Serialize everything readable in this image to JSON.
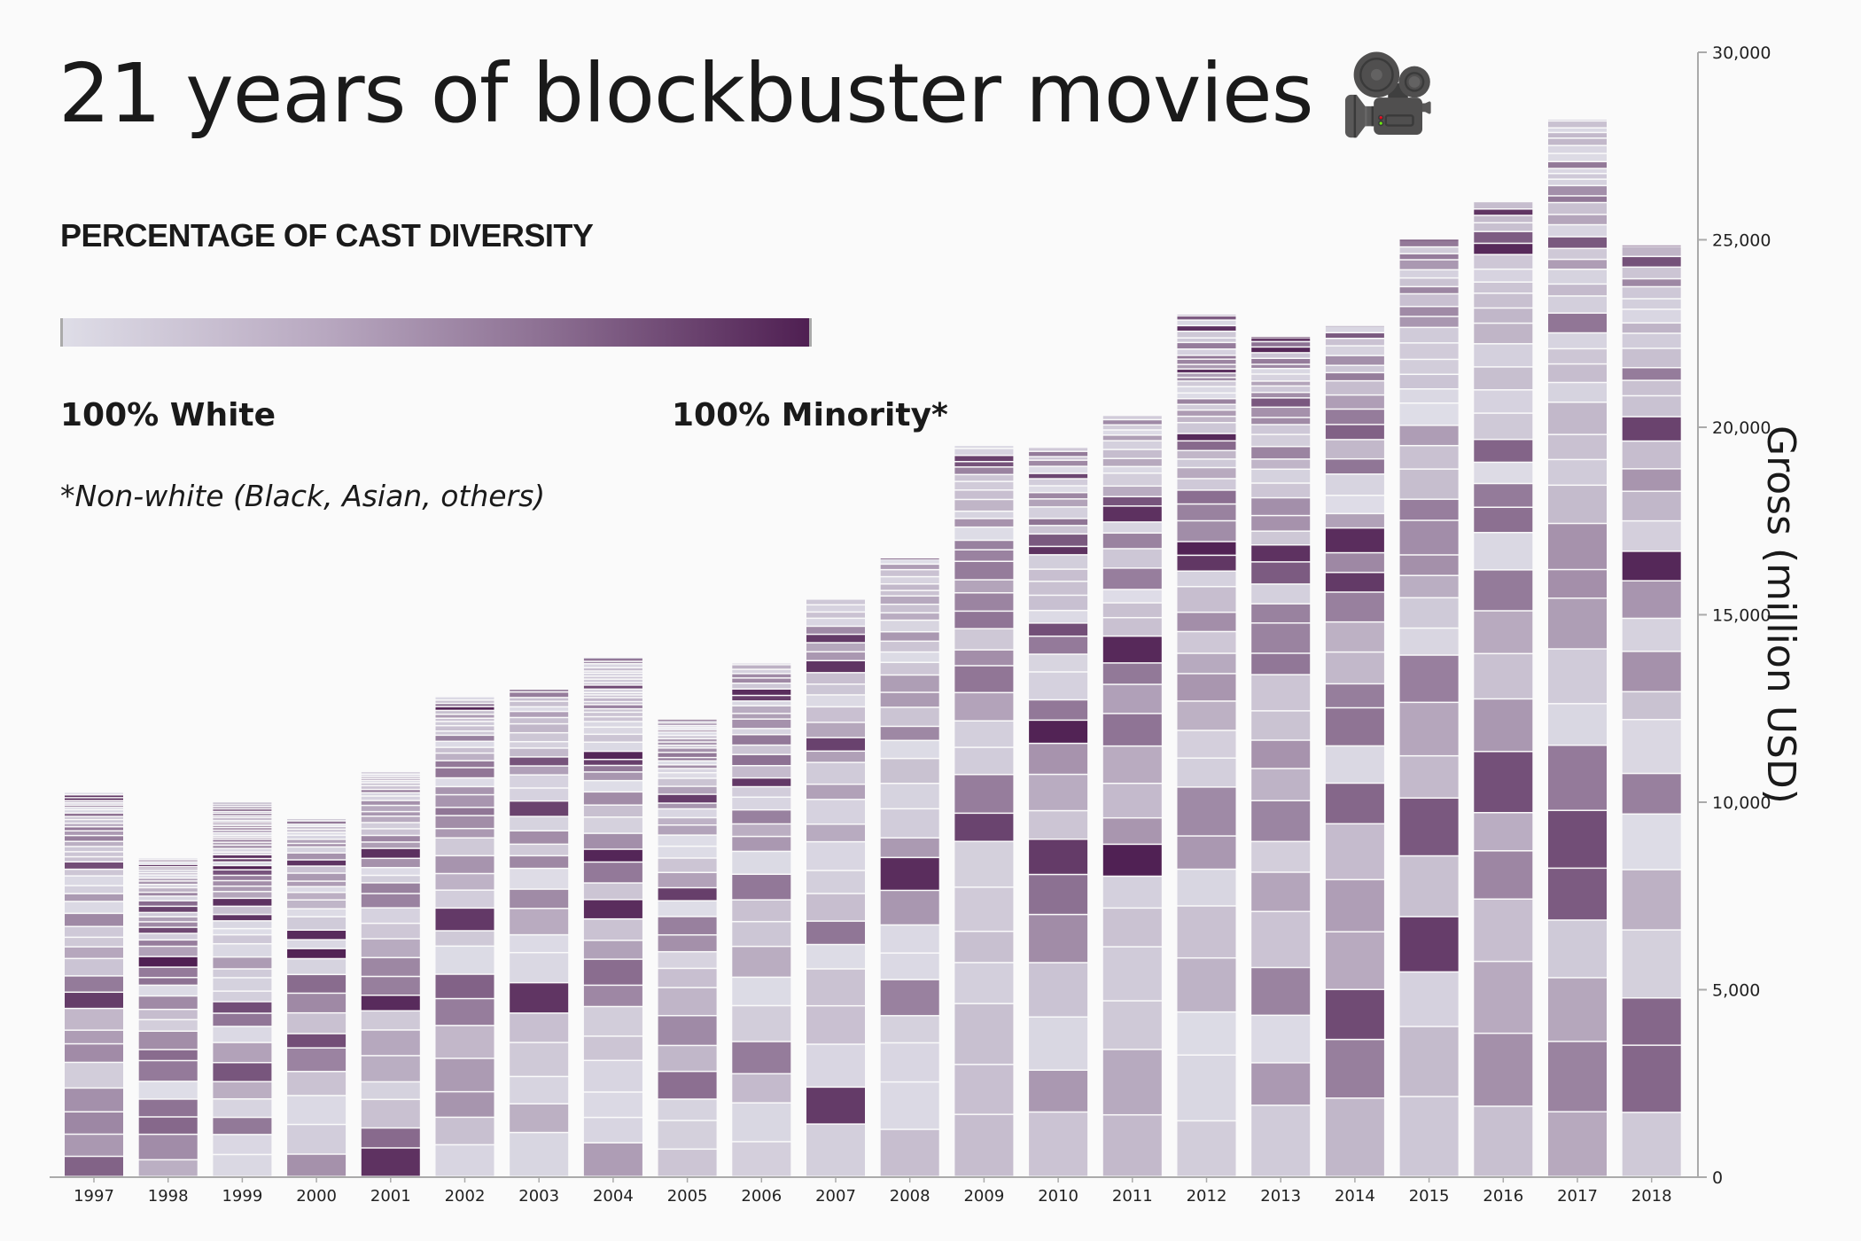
{
  "chart_data": {
    "type": "bar",
    "stacked": true,
    "title": "21 years of blockbuster movies",
    "title_icon": "movie-camera",
    "legend": {
      "title": "PERCENTAGE OF CAST DIVERSITY",
      "low_label": "100% White",
      "high_label": "100% Minority*",
      "footnote": "*Non-white (Black, Asian, others)",
      "low_color": "#dedde7",
      "high_color": "#4f1f52"
    },
    "xlabel": "",
    "ylabel": "Gross (million USD)",
    "ylim": [
      0,
      30000
    ],
    "yticks": [
      0,
      5000,
      10000,
      15000,
      20000,
      25000,
      30000
    ],
    "ytick_labels": [
      "0",
      "5,000",
      "10,000",
      "15,000",
      "20,000",
      "25,000",
      "30,000"
    ],
    "categories": [
      "1997",
      "1998",
      "1999",
      "2000",
      "2001",
      "2002",
      "2003",
      "2004",
      "2005",
      "2006",
      "2007",
      "2008",
      "2009",
      "2010",
      "2011",
      "2012",
      "2013",
      "2014",
      "2015",
      "2016",
      "2017",
      "2018"
    ],
    "values": [
      10250,
      8500,
      10000,
      9550,
      10800,
      12800,
      13000,
      13850,
      12200,
      13700,
      15400,
      16500,
      19500,
      19450,
      20300,
      23000,
      22400,
      22700,
      25000,
      26000,
      28200,
      24850
    ]
  }
}
